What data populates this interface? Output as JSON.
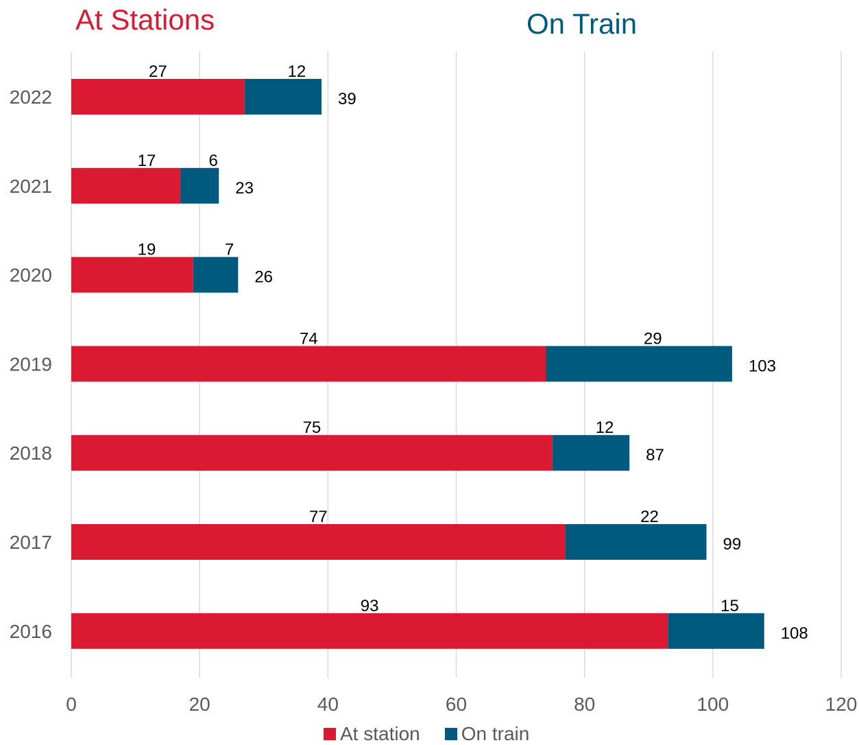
{
  "headers": {
    "left": "At Stations",
    "right": "On Train"
  },
  "colors": {
    "at_station": "#DA1A32",
    "on_train": "#005A7E",
    "grid": "#D9D9D9",
    "axis_text": "#595959"
  },
  "chart_data": {
    "type": "bar",
    "orientation": "horizontal",
    "stacked": true,
    "categories": [
      "2022",
      "2021",
      "2020",
      "2019",
      "2018",
      "2017",
      "2016"
    ],
    "series": [
      {
        "name": "At station",
        "values": [
          27,
          17,
          19,
          74,
          75,
          77,
          93
        ]
      },
      {
        "name": "On train",
        "values": [
          12,
          6,
          7,
          29,
          12,
          22,
          15
        ]
      }
    ],
    "totals": [
      39,
      23,
      26,
      103,
      87,
      99,
      108
    ],
    "xlim": [
      0,
      120
    ],
    "xticks": [
      0,
      20,
      40,
      60,
      80,
      100,
      120
    ],
    "grid": true,
    "legend": "bottom"
  }
}
